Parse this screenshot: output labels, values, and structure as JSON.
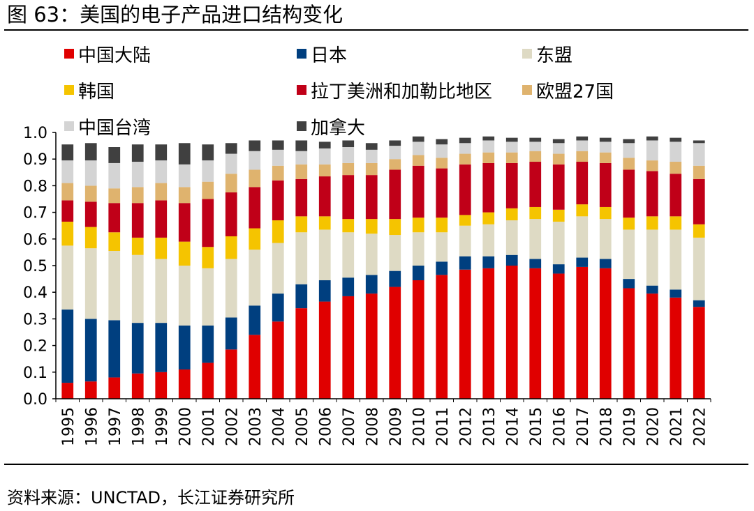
{
  "figure": {
    "title": "图 63：美国的电子产品进口结构变化",
    "source": "资料来源：UNCTAD，长江证券研究所"
  },
  "chart_data": {
    "type": "bar",
    "stacked": true,
    "title": "",
    "xlabel": "",
    "ylabel": "",
    "ylim": [
      0,
      1.0
    ],
    "yticks": [
      "0.0",
      "0.1",
      "0.2",
      "0.3",
      "0.4",
      "0.5",
      "0.6",
      "0.7",
      "0.8",
      "0.9",
      "1.0"
    ],
    "grid": false,
    "legend_position": "top",
    "categories": [
      "1995",
      "1996",
      "1997",
      "1998",
      "1999",
      "2000",
      "2001",
      "2002",
      "2003",
      "2004",
      "2005",
      "2006",
      "2007",
      "2008",
      "2009",
      "2010",
      "2011",
      "2012",
      "2013",
      "2014",
      "2015",
      "2016",
      "2017",
      "2018",
      "2019",
      "2020",
      "2021",
      "2022"
    ],
    "series": [
      {
        "name": "中国大陆",
        "color": "#e00000",
        "values": [
          0.06,
          0.065,
          0.08,
          0.095,
          0.1,
          0.11,
          0.135,
          0.185,
          0.24,
          0.29,
          0.34,
          0.365,
          0.385,
          0.395,
          0.42,
          0.445,
          0.465,
          0.485,
          0.49,
          0.5,
          0.49,
          0.47,
          0.495,
          0.49,
          0.415,
          0.395,
          0.38,
          0.345
        ]
      },
      {
        "name": "日本",
        "color": "#003f7f",
        "values": [
          0.275,
          0.235,
          0.215,
          0.19,
          0.185,
          0.165,
          0.14,
          0.12,
          0.11,
          0.105,
          0.09,
          0.08,
          0.07,
          0.07,
          0.06,
          0.055,
          0.05,
          0.05,
          0.045,
          0.04,
          0.035,
          0.035,
          0.035,
          0.035,
          0.035,
          0.03,
          0.03,
          0.025
        ]
      },
      {
        "name": "东盟",
        "color": "#dedac4",
        "values": [
          0.24,
          0.265,
          0.26,
          0.255,
          0.24,
          0.225,
          0.215,
          0.22,
          0.21,
          0.19,
          0.195,
          0.19,
          0.17,
          0.155,
          0.135,
          0.125,
          0.11,
          0.115,
          0.12,
          0.13,
          0.15,
          0.16,
          0.155,
          0.15,
          0.185,
          0.21,
          0.225,
          0.235
        ]
      },
      {
        "name": "韩国",
        "color": "#f5c400",
        "values": [
          0.09,
          0.08,
          0.07,
          0.065,
          0.08,
          0.09,
          0.08,
          0.085,
          0.08,
          0.085,
          0.06,
          0.05,
          0.05,
          0.055,
          0.06,
          0.055,
          0.055,
          0.04,
          0.045,
          0.045,
          0.045,
          0.045,
          0.045,
          0.045,
          0.045,
          0.05,
          0.05,
          0.05
        ]
      },
      {
        "name": "拉丁美洲和加勒比地区",
        "color": "#c00018",
        "values": [
          0.08,
          0.095,
          0.11,
          0.13,
          0.14,
          0.145,
          0.18,
          0.165,
          0.155,
          0.15,
          0.14,
          0.15,
          0.165,
          0.165,
          0.185,
          0.195,
          0.185,
          0.19,
          0.185,
          0.17,
          0.17,
          0.17,
          0.16,
          0.165,
          0.18,
          0.17,
          0.16,
          0.17
        ]
      },
      {
        "name": "欧盟27国",
        "color": "#dfb36e",
        "values": [
          0.065,
          0.06,
          0.055,
          0.06,
          0.065,
          0.06,
          0.065,
          0.07,
          0.065,
          0.055,
          0.055,
          0.045,
          0.045,
          0.045,
          0.04,
          0.04,
          0.04,
          0.04,
          0.04,
          0.04,
          0.04,
          0.04,
          0.04,
          0.04,
          0.045,
          0.04,
          0.045,
          0.05
        ]
      },
      {
        "name": "中国台湾",
        "color": "#d4d4d4",
        "values": [
          0.085,
          0.095,
          0.095,
          0.095,
          0.085,
          0.085,
          0.08,
          0.075,
          0.07,
          0.06,
          0.05,
          0.06,
          0.06,
          0.05,
          0.05,
          0.05,
          0.05,
          0.04,
          0.045,
          0.04,
          0.035,
          0.04,
          0.04,
          0.04,
          0.055,
          0.075,
          0.075,
          0.085
        ]
      },
      {
        "name": "加拿大",
        "color": "#404040",
        "values": [
          0.06,
          0.065,
          0.06,
          0.065,
          0.06,
          0.08,
          0.06,
          0.04,
          0.04,
          0.035,
          0.04,
          0.025,
          0.025,
          0.025,
          0.02,
          0.02,
          0.02,
          0.02,
          0.015,
          0.015,
          0.015,
          0.015,
          0.015,
          0.015,
          0.015,
          0.015,
          0.015,
          0.01
        ]
      }
    ]
  }
}
